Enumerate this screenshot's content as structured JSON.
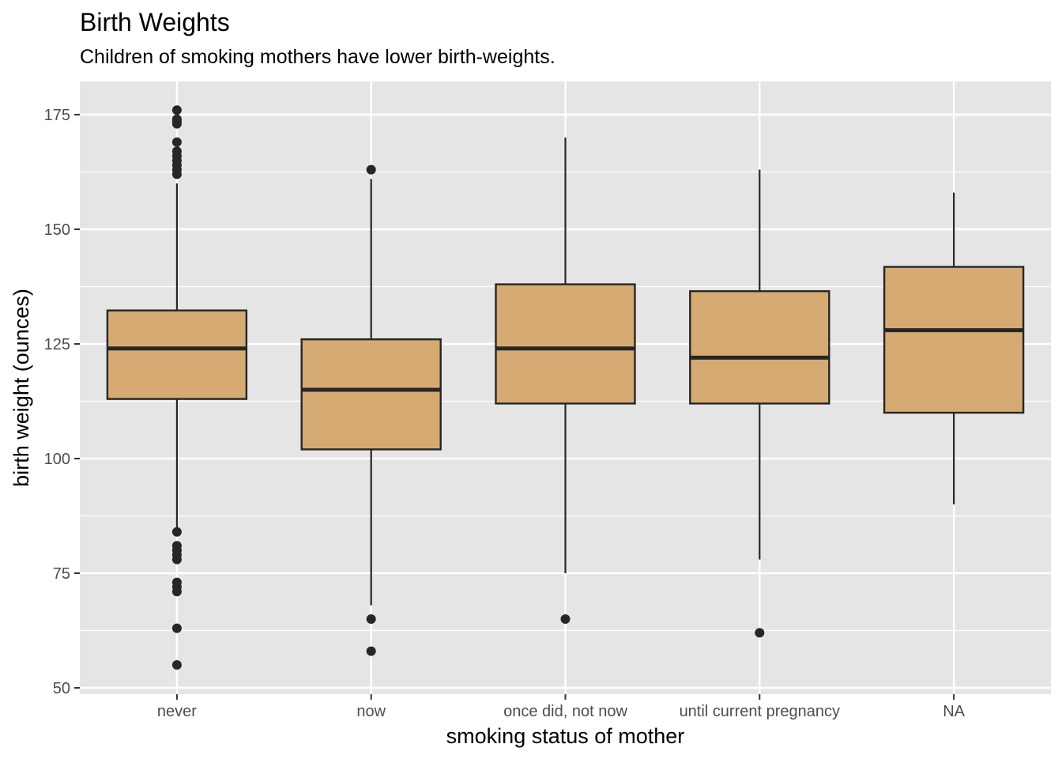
{
  "chart_data": {
    "type": "boxplot",
    "title": "Birth Weights",
    "subtitle": "Children of smoking mothers have lower birth-weights.",
    "xlabel": "smoking status of mother",
    "ylabel": "birth weight (ounces)",
    "ylim": [
      48.5,
      180.5
    ],
    "yticks": [
      50,
      75,
      100,
      125,
      150,
      175
    ],
    "grid": true,
    "colors": {
      "panel": "#e5e5e5",
      "box_fill": "#d5aa73",
      "line": "#262626",
      "grid": "#ffffff",
      "tick_text": "#4d4d4d"
    },
    "categories": [
      "never",
      "now",
      "once did, not now",
      "until current pregnancy",
      "NA"
    ],
    "boxes": [
      {
        "category": "never",
        "whisker_low": 85,
        "q1": 113,
        "median": 124,
        "q3": 132.3,
        "whisker_high": 160,
        "outliers": [
          176,
          174,
          173.5,
          173,
          169,
          167,
          166,
          165,
          164,
          163,
          162,
          84,
          81,
          80,
          79,
          78,
          73,
          72,
          71,
          63,
          55
        ]
      },
      {
        "category": "now",
        "whisker_low": 68,
        "q1": 102,
        "median": 115,
        "q3": 126,
        "whisker_high": 161,
        "outliers": [
          163,
          65,
          58
        ]
      },
      {
        "category": "once did, not now",
        "whisker_low": 75,
        "q1": 112,
        "median": 124,
        "q3": 138,
        "whisker_high": 170,
        "outliers": [
          65
        ]
      },
      {
        "category": "until current pregnancy",
        "whisker_low": 78,
        "q1": 112,
        "median": 122,
        "q3": 136.5,
        "whisker_high": 163,
        "outliers": [
          62
        ]
      },
      {
        "category": "NA",
        "whisker_low": 90,
        "q1": 110,
        "median": 128,
        "q3": 141.8,
        "whisker_high": 158,
        "outliers": []
      }
    ]
  }
}
